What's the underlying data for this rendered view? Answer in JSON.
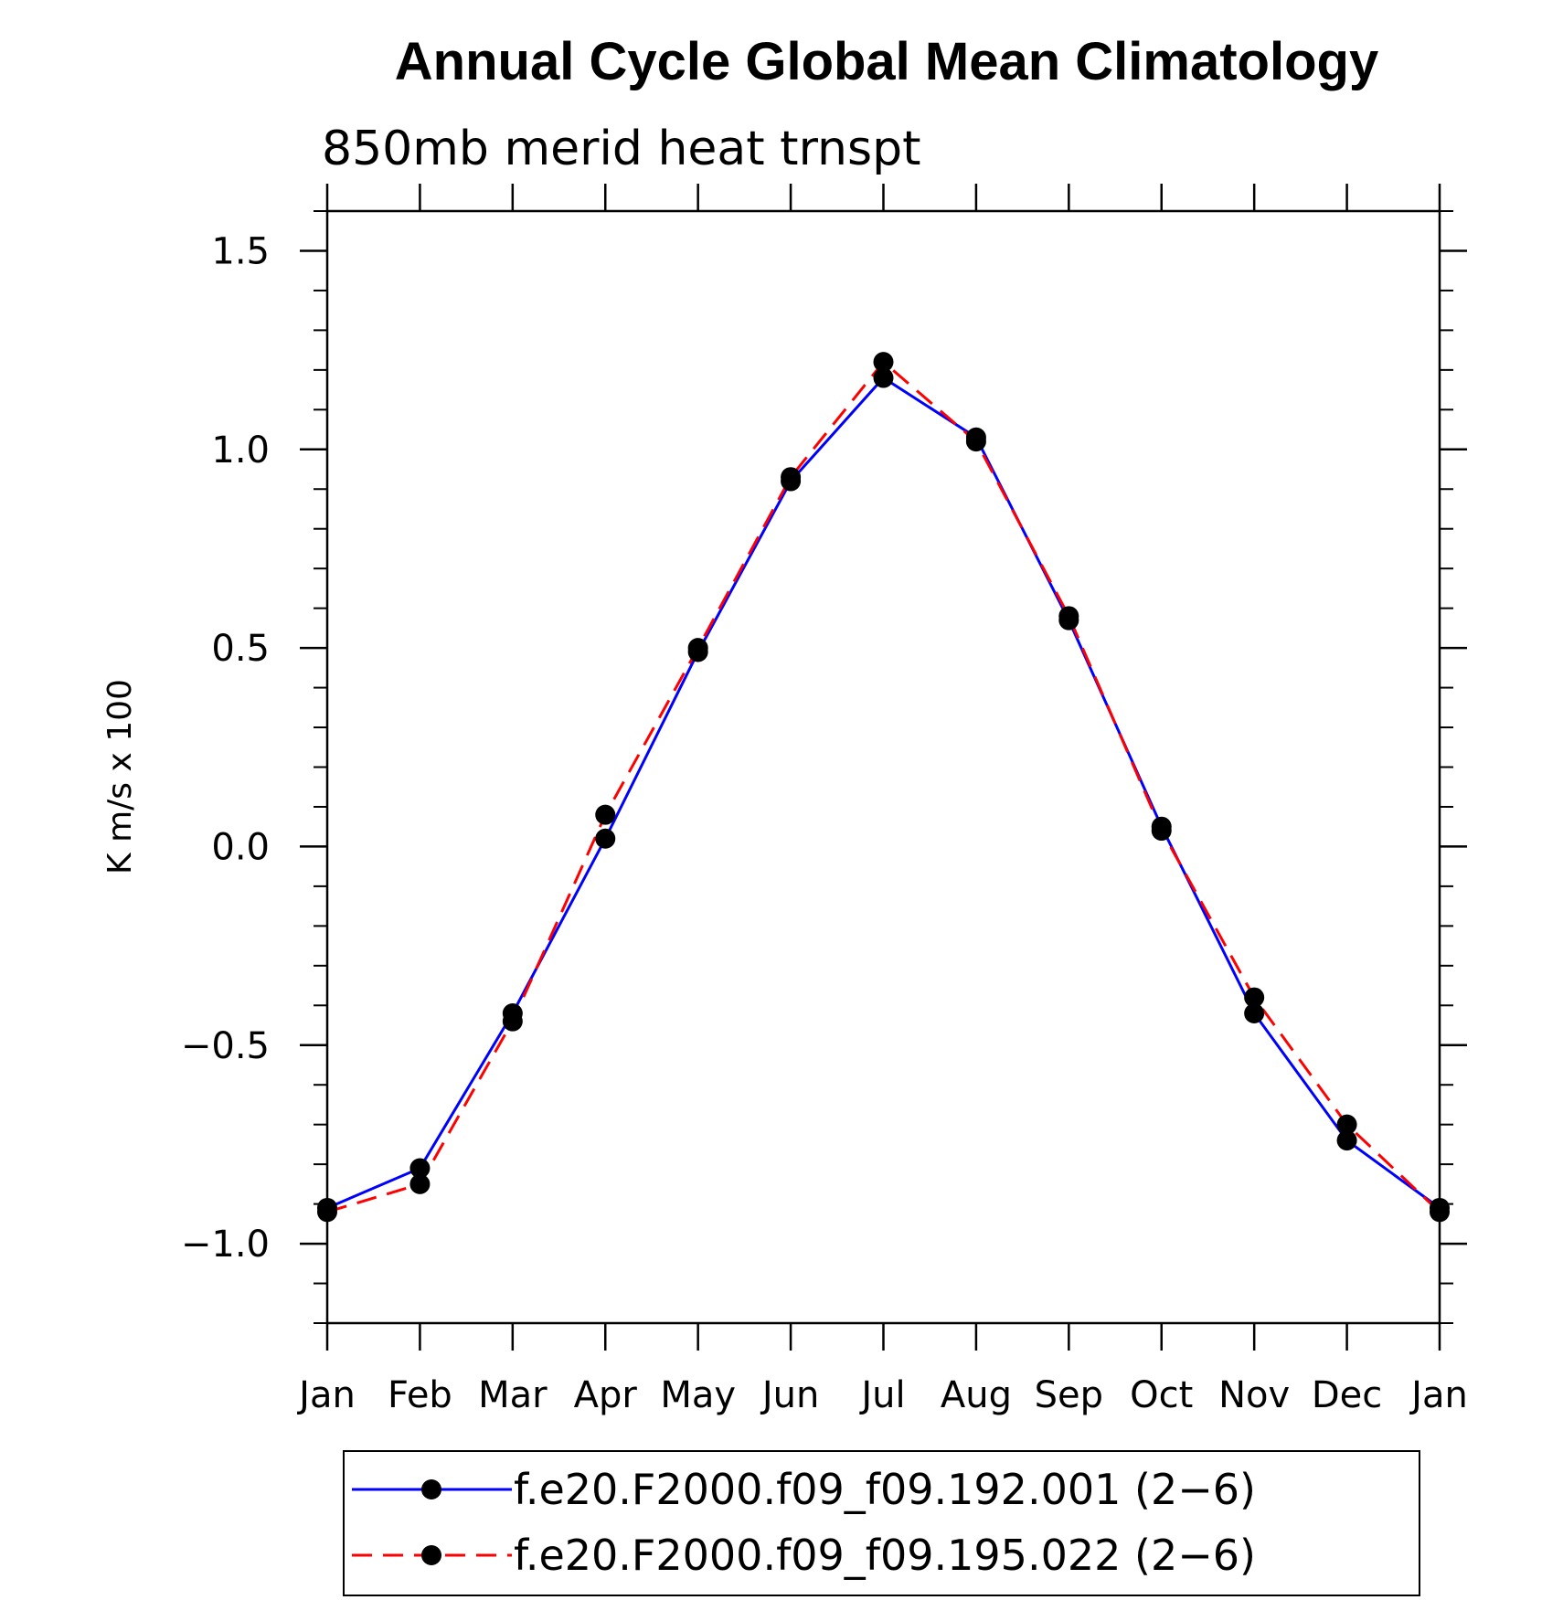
{
  "chart_data": {
    "type": "line",
    "title": "Annual Cycle Global Mean Climatology",
    "subtitle": "850mb merid heat trnspt",
    "xlabel": "",
    "ylabel": "K m/s x 100",
    "categories": [
      "Jan",
      "Feb",
      "Mar",
      "Apr",
      "May",
      "Jun",
      "Jul",
      "Aug",
      "Sep",
      "Oct",
      "Nov",
      "Dec",
      "Jan"
    ],
    "ylim": [
      -1.2,
      1.6
    ],
    "yticks": [
      "1.5",
      "1.0",
      "0.5",
      "0.0",
      "−0.5",
      "−1.0"
    ],
    "grid": false,
    "legend": "bottom",
    "series": [
      {
        "name": "f.e20.F2000.f09_f09.192.001 (2−6)",
        "values": [
          -0.91,
          -0.81,
          -0.42,
          0.02,
          0.49,
          0.92,
          1.18,
          1.03,
          0.57,
          0.05,
          -0.42,
          -0.74,
          -0.91
        ],
        "color": "#0000ff",
        "style": "solid"
      },
      {
        "name": "f.e20.F2000.f09_f09.195.022 (2−6)",
        "values": [
          -0.92,
          -0.85,
          -0.44,
          0.08,
          0.5,
          0.93,
          1.22,
          1.02,
          0.58,
          0.04,
          -0.38,
          -0.7,
          -0.92
        ],
        "color": "#ff0000",
        "style": "dashed"
      }
    ]
  }
}
